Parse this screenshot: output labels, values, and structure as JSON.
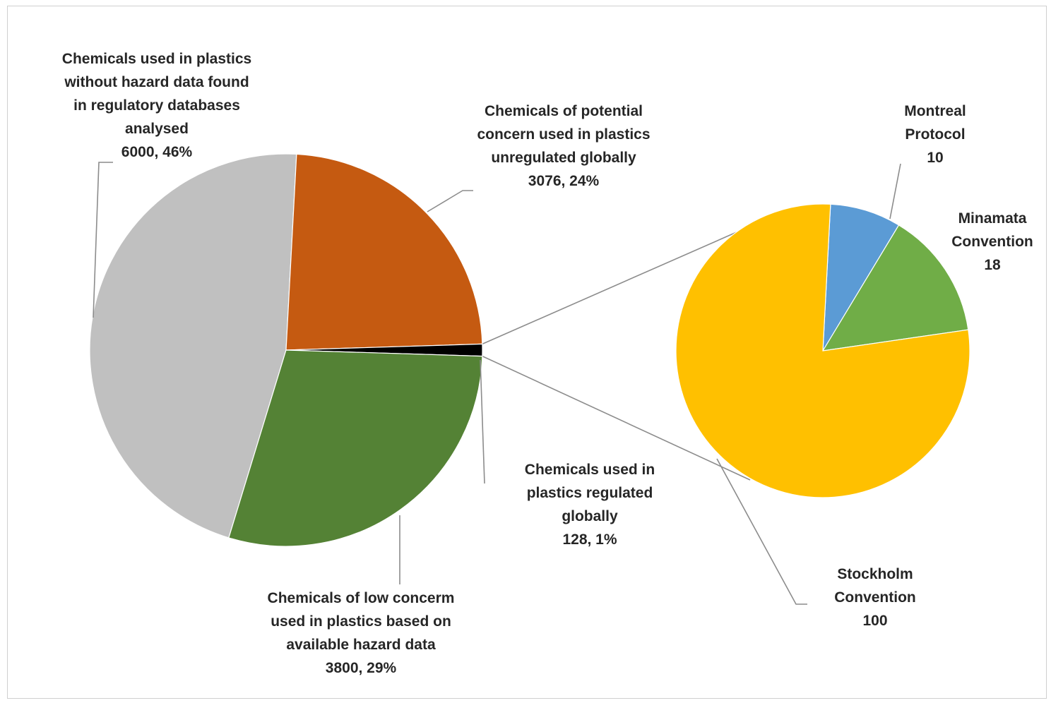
{
  "chart_data": [
    {
      "type": "pie",
      "title": "",
      "slices": [
        {
          "label_lines": [
            "Chemicals used in plastics",
            "without hazard data found",
            "in regulatory databases",
            "analysed",
            "6000, 46%"
          ],
          "value": 6000,
          "percent": 46,
          "color": "#c0c0c0"
        },
        {
          "label_lines": [
            "Chemicals of potential",
            "concern used in plastics",
            "unregulated globally",
            "3076, 24%"
          ],
          "value": 3076,
          "percent": 24,
          "color": "#c55a11"
        },
        {
          "label_lines": [
            "Chemicals used in",
            "plastics regulated",
            "globally",
            "128, 1%"
          ],
          "value": 128,
          "percent": 1,
          "color": "#000000"
        },
        {
          "label_lines": [
            "Chemicals of low concerm",
            "used in plastics based on",
            "available hazard data",
            "3800, 29%"
          ],
          "value": 3800,
          "percent": 29,
          "color": "#548235"
        }
      ]
    },
    {
      "type": "pie",
      "title": "",
      "breakdown_of": "Chemicals used in plastics regulated globally",
      "slices": [
        {
          "label_lines": [
            "Montreal",
            "Protocol",
            "10"
          ],
          "value": 10,
          "color": "#5b9bd5"
        },
        {
          "label_lines": [
            "Minamata",
            "Convention",
            "18"
          ],
          "value": 18,
          "color": "#70ad47"
        },
        {
          "label_lines": [
            "Stockholm",
            "Convention",
            "100"
          ],
          "value": 100,
          "color": "#ffc000"
        }
      ]
    }
  ]
}
